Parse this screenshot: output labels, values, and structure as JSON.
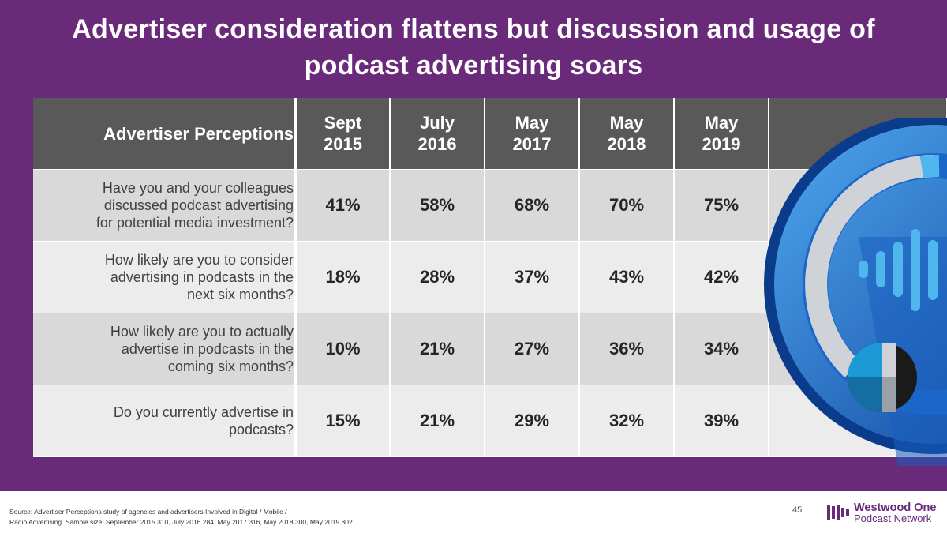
{
  "title_line1": "Advertiser consideration flattens but discussion and usage of",
  "title_line2": "podcast advertising soars",
  "table": {
    "header_label": "Advertiser Perceptions",
    "columns": [
      {
        "line1": "Sept",
        "line2": "2015"
      },
      {
        "line1": "July",
        "line2": "2016"
      },
      {
        "line1": "May",
        "line2": "2017"
      },
      {
        "line1": "May",
        "line2": "2018"
      },
      {
        "line1": "May",
        "line2": "2019"
      }
    ],
    "rows": [
      {
        "question": [
          "Have you and your colleagues",
          "discussed podcast advertising",
          "for potential media investment?"
        ],
        "values": [
          "41%",
          "58%",
          "68%",
          "70%",
          "75%"
        ]
      },
      {
        "question": [
          "How likely are you to consider",
          "advertising in podcasts in the",
          "next six months?"
        ],
        "values": [
          "18%",
          "28%",
          "37%",
          "43%",
          "42%"
        ]
      },
      {
        "question": [
          "How likely are you to actually",
          "advertise in podcasts in the",
          "coming six months?"
        ],
        "values": [
          "10%",
          "21%",
          "27%",
          "36%",
          "34%"
        ]
      },
      {
        "question": [
          "Do you currently advertise in",
          "podcasts?"
        ],
        "values": [
          "15%",
          "21%",
          "29%",
          "32%",
          "39%"
        ]
      }
    ]
  },
  "source_line1": "Source: Advertiser Perceptions study of agencies and advertisers Involved in Digital / Mobile /",
  "source_line2": "Radio Advertising. Sample size: September 2015 310, July 2016 284, May 2017 316, May 2018 300, May 2019 302.",
  "page_number": "45",
  "brand": {
    "line1": "Westwood One",
    "line2": "Podcast Network"
  },
  "colors": {
    "background": "#6a2a7a",
    "header": "#595959",
    "row_dark": "#d9d9d9",
    "row_light": "#ececec"
  }
}
